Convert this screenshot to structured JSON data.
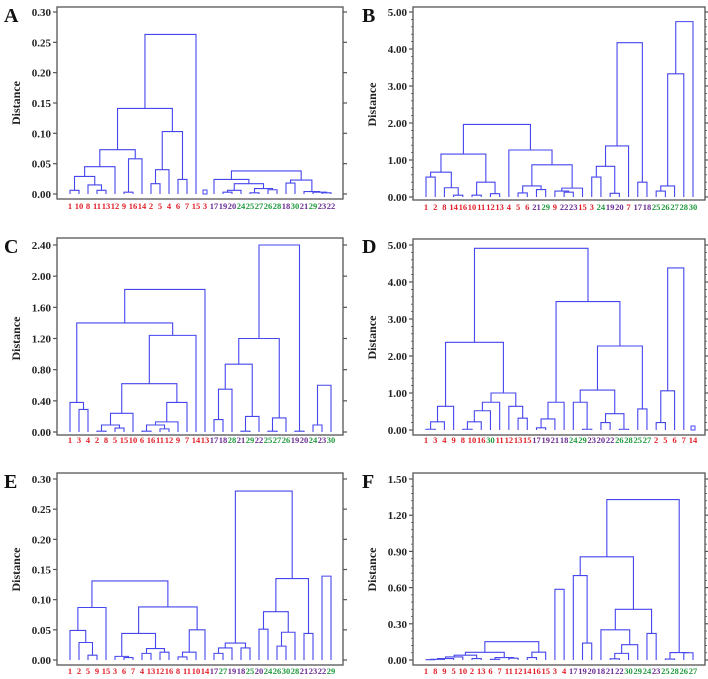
{
  "colors": {
    "line": "#4646ee",
    "group_1_16": "#e3202a",
    "group_17_23": "#6b2c94",
    "group_24_30": "#1f9a3c",
    "frame": "#555555"
  },
  "chart_data": [
    {
      "type": "dendrogram",
      "panel": "A",
      "ylabel": "Distance",
      "ylim": [
        0,
        0.3
      ],
      "yticks": [
        "0.00",
        "0.05",
        "0.10",
        "0.15",
        "0.20",
        "0.25",
        "0.30"
      ],
      "minor_ticks": false,
      "leaf_order": [
        "1",
        "10",
        "8",
        "11",
        "13",
        "12",
        "9",
        "16",
        "14",
        "2",
        "5",
        "4",
        "6",
        "7",
        "15",
        "3",
        "17",
        "19",
        "20",
        "24",
        "25",
        "27",
        "26",
        "28",
        "18",
        "30",
        "21",
        "29",
        "23",
        "22"
      ],
      "roots": [
        [
          0.263,
          [
            0.141,
            [
              0.073,
              [
                0.045,
                [
                  0.029,
                  [
                    0.006,
                    "1",
                    "10"
                  ],
                  [
                    0.015,
                    "8",
                    [
                      0.006,
                      "11",
                      "13"
                    ]
                  ]
                ],
                "12"
              ],
              [
                0.058,
                [
                  0.003,
                  "9",
                  "16"
                ],
                "14"
              ]
            ],
            [
              0.103,
              [
                0.04,
                [
                  0.017,
                  "2",
                  "5"
                ],
                "4"
              ],
              [
                0.024,
                "6",
                "7"
              ]
            ]
          ],
          "15"
        ],
        "3",
        [
          0.038,
          [
            0.024,
            "17",
            [
              0.017,
              [
                0.006,
                [
                  0.003,
                  "19",
                  "20"
                ],
                "24"
              ],
              [
                0.009,
                [
                  0.002,
                  "25",
                  "27"
                ],
                [
                  0.007,
                  "26",
                  "28"
                ]
              ]
            ]
          ],
          [
            0.023,
            [
              0.018,
              "18",
              "30"
            ],
            [
              0.004,
              "21",
              [
                0.003,
                "29",
                [
                  0.002,
                  "23",
                  "22"
                ]
              ]
            ]
          ]
        ]
      ]
    },
    {
      "type": "dendrogram",
      "panel": "B",
      "ylabel": "Distance",
      "ylim": [
        0,
        5.0
      ],
      "yticks": [
        "0.00",
        "1.00",
        "2.00",
        "3.00",
        "4.00",
        "5.00"
      ],
      "minor_ticks": true,
      "leaf_order": [
        "1",
        "2",
        "8",
        "14",
        "16",
        "10",
        "11",
        "12",
        "13",
        "4",
        "5",
        "6",
        "21",
        "29",
        "9",
        "22",
        "23",
        "15",
        "3",
        "24",
        "19",
        "20",
        "7",
        "17",
        "18",
        "25",
        "26",
        "27",
        "28",
        "30"
      ],
      "roots": [
        [
          1.96,
          [
            1.16,
            [
              0.67,
              [
                0.54,
                "1",
                "2"
              ],
              [
                0.25,
                "8",
                [
                  0.05,
                  "14",
                  "16"
                ]
              ]
            ],
            [
              0.4,
              [
                0.05,
                "10",
                "11"
              ],
              [
                0.09,
                "12",
                "13"
              ]
            ]
          ],
          [
            1.27,
            "4",
            [
              0.87,
              [
                0.3,
                [
                  0.11,
                  "5",
                  "6"
                ],
                [
                  0.2,
                  "21",
                  "29"
                ]
              ],
              [
                0.24,
                [
                  0.16,
                  "9",
                  [
                    0.13,
                    "22",
                    "23"
                  ]
                ],
                "15"
              ]
            ]
          ]
        ],
        [
          4.17,
          [
            1.38,
            [
              0.83,
              [
                0.54,
                "3",
                "24"
              ],
              [
                0.1,
                "19",
                "20"
              ]
            ],
            "7"
          ],
          [
            0.4,
            "17",
            "18"
          ]
        ],
        [
          4.74,
          [
            3.33,
            [
              0.3,
              [
                0.16,
                "25",
                "26"
              ],
              "27"
            ],
            "28"
          ],
          "30"
        ]
      ]
    },
    {
      "type": "dendrogram",
      "panel": "C",
      "ylabel": "Distance",
      "ylim": [
        0,
        2.4
      ],
      "yticks": [
        "0.00",
        "0.40",
        "0.80",
        "1.20",
        "1.60",
        "2.00",
        "2.40"
      ],
      "minor_ticks": false,
      "leaf_order": [
        "1",
        "3",
        "4",
        "2",
        "8",
        "5",
        "15",
        "10",
        "6",
        "16",
        "11",
        "12",
        "9",
        "7",
        "14",
        "13",
        "17",
        "18",
        "28",
        "21",
        "29",
        "22",
        "25",
        "27",
        "26",
        "19",
        "20",
        "24",
        "23",
        "30"
      ],
      "roots": [
        [
          1.83,
          [
            1.4,
            [
              0.38,
              "1",
              [
                0.29,
                "3",
                "4"
              ]
            ],
            [
              1.24,
              [
                0.62,
                [
                  0.24,
                  [
                    0.09,
                    [
                      0.01,
                      "2",
                      "8"
                    ],
                    [
                      0.05,
                      "5",
                      "15"
                    ]
                  ],
                  "10"
                ],
                [
                  0.38,
                  [
                    0.13,
                    [
                      0.09,
                      [
                        0.01,
                        "6",
                        "16"
                      ],
                      [
                        0.04,
                        "11",
                        "12"
                      ]
                    ],
                    "9"
                  ],
                  "7"
                ]
              ],
              "14"
            ]
          ],
          "13"
        ],
        [
          2.4,
          [
            1.2,
            [
              0.87,
              [
                0.55,
                [
                  0.16,
                  "17",
                  "18"
                ],
                "28"
              ],
              [
                0.2,
                [
                  0.01,
                  "21",
                  "29"
                ],
                "22"
              ]
            ],
            [
              0.18,
              [
                0.01,
                "25",
                "27"
              ],
              "26"
            ]
          ],
          [
            0.01,
            "19",
            "20"
          ]
        ],
        [
          0.6,
          [
            0.09,
            "24",
            "23"
          ],
          "30"
        ]
      ]
    },
    {
      "type": "dendrogram",
      "panel": "D",
      "ylabel": "Distance",
      "ylim": [
        0,
        5.0
      ],
      "yticks": [
        "0.00",
        "1.00",
        "2.00",
        "3.00",
        "4.00",
        "5.00"
      ],
      "minor_ticks": true,
      "leaf_order": [
        "1",
        "3",
        "4",
        "9",
        "8",
        "10",
        "16",
        "30",
        "11",
        "12",
        "13",
        "15",
        "17",
        "19",
        "21",
        "18",
        "24",
        "29",
        "23",
        "20",
        "22",
        "26",
        "28",
        "25",
        "27",
        "2",
        "5",
        "6",
        "7",
        "14"
      ],
      "roots": [
        [
          4.91,
          [
            2.37,
            [
              0.64,
              [
                0.22,
                [
                  0.02,
                  "1",
                  "3"
                ],
                "4"
              ],
              "9"
            ],
            [
              1.0,
              [
                0.75,
                [
                  0.52,
                  [
                    0.22,
                    [
                      0.02,
                      "8",
                      "10"
                    ],
                    "16"
                  ],
                  "30"
                ],
                "11"
              ],
              [
                0.64,
                "12",
                [
                  0.32,
                  "13",
                  "15"
                ]
              ]
            ]
          ],
          [
            3.47,
            [
              0.75,
              [
                0.3,
                [
                  0.06,
                  "17",
                  "19"
                ],
                "21"
              ],
              "18"
            ],
            [
              2.27,
              [
                1.08,
                [
                  0.75,
                  "24",
                  [
                    0.02,
                    "29",
                    "23"
                  ]
                ],
                [
                  0.44,
                  [
                    0.2,
                    "20",
                    "22"
                  ],
                  [
                    0.02,
                    "26",
                    "28"
                  ]
                ]
              ],
              [
                0.57,
                "25",
                "27"
              ]
            ]
          ]
        ],
        [
          4.38,
          [
            1.06,
            [
              0.2,
              "2",
              "5"
            ],
            "6"
          ],
          "7"
        ],
        "14"
      ]
    },
    {
      "type": "dendrogram",
      "panel": "E",
      "ylabel": "Distance",
      "ylim": [
        0,
        0.3
      ],
      "yticks": [
        "0.00",
        "0.05",
        "0.10",
        "0.15",
        "0.20",
        "0.25",
        "0.30"
      ],
      "minor_ticks": false,
      "leaf_order": [
        "1",
        "2",
        "5",
        "9",
        "15",
        "3",
        "6",
        "7",
        "4",
        "13",
        "12",
        "16",
        "8",
        "11",
        "10",
        "14",
        "17",
        "27",
        "19",
        "18",
        "25",
        "20",
        "24",
        "26",
        "30",
        "28",
        "21",
        "23",
        "22",
        "29"
      ],
      "roots": [
        [
          0.131,
          [
            0.087,
            [
              0.049,
              "1",
              [
                0.029,
                "2",
                [
                  0.008,
                  "5",
                  "9"
                ]
              ]
            ],
            "15"
          ],
          [
            0.088,
            [
              0.044,
              [
                0.006,
                "3",
                [
                  0.004,
                  "6",
                  "7"
                ]
              ],
              [
                0.019,
                [
                  0.011,
                  "4",
                  "13"
                ],
                [
                  0.013,
                  "12",
                  "16"
                ]
              ]
            ],
            [
              0.05,
              [
                0.013,
                [
                  0.005,
                  "8",
                  "11"
                ],
                "10"
              ],
              "14"
            ]
          ]
        ],
        [
          0.28,
          [
            0.028,
            [
              0.02,
              [
                0.011,
                "17",
                "27"
              ],
              "19"
            ],
            [
              0.02,
              "18",
              "25"
            ]
          ],
          [
            0.135,
            [
              0.08,
              [
                0.051,
                "20",
                "24"
              ],
              [
                0.046,
                [
                  0.023,
                  "26",
                  "30"
                ],
                "28"
              ]
            ],
            [
              0.044,
              "21",
              "23"
            ]
          ]
        ],
        [
          0.139,
          "22",
          "29"
        ]
      ]
    },
    {
      "type": "dendrogram",
      "panel": "F",
      "ylabel": "Distance",
      "ylim": [
        0,
        1.5
      ],
      "yticks": [
        "0.00",
        "0.30",
        "0.60",
        "0.90",
        "1.20",
        "1.50"
      ],
      "minor_ticks": true,
      "leaf_order": [
        "1",
        "8",
        "9",
        "5",
        "10",
        "2",
        "13",
        "6",
        "7",
        "11",
        "12",
        "14",
        "16",
        "15",
        "3",
        "4",
        "17",
        "19",
        "20",
        "18",
        "21",
        "22",
        "30",
        "29",
        "24",
        "23",
        "25",
        "28",
        "26",
        "27"
      ],
      "roots": [
        [
          0.152,
          [
            0.064,
            [
              0.04,
              [
                0.025,
                [
                  0.012,
                  [
                    0.006,
                    [
                      0.003,
                      "1",
                      "8"
                    ],
                    "9"
                  ],
                  "5"
                ],
                "10"
              ],
              [
                0.012,
                "2",
                "13"
              ]
            ],
            [
              0.02,
              [
                0.006,
                "6",
                "7"
              ],
              [
                0.015,
                "11",
                "12"
              ]
            ]
          ],
          [
            0.065,
            [
              0.02,
              "14",
              "16"
            ],
            "15"
          ]
        ],
        [
          0.586,
          "3",
          "4"
        ],
        [
          1.33,
          [
            0.855,
            [
              0.7,
              "17",
              [
                0.14,
                "19",
                "20"
              ]
            ],
            [
              0.42,
              [
                0.25,
                "18",
                [
                  0.127,
                  [
                    0.055,
                    [
                      0.01,
                      "21",
                      "22"
                    ],
                    "30"
                  ],
                  "29"
                ]
              ],
              [
                0.22,
                "24",
                "23"
              ]
            ]
          ],
          [
            0.062,
            [
              0.008,
              "25",
              "28"
            ],
            [
              0.06,
              "26",
              "27"
            ]
          ]
        ]
      ]
    }
  ]
}
